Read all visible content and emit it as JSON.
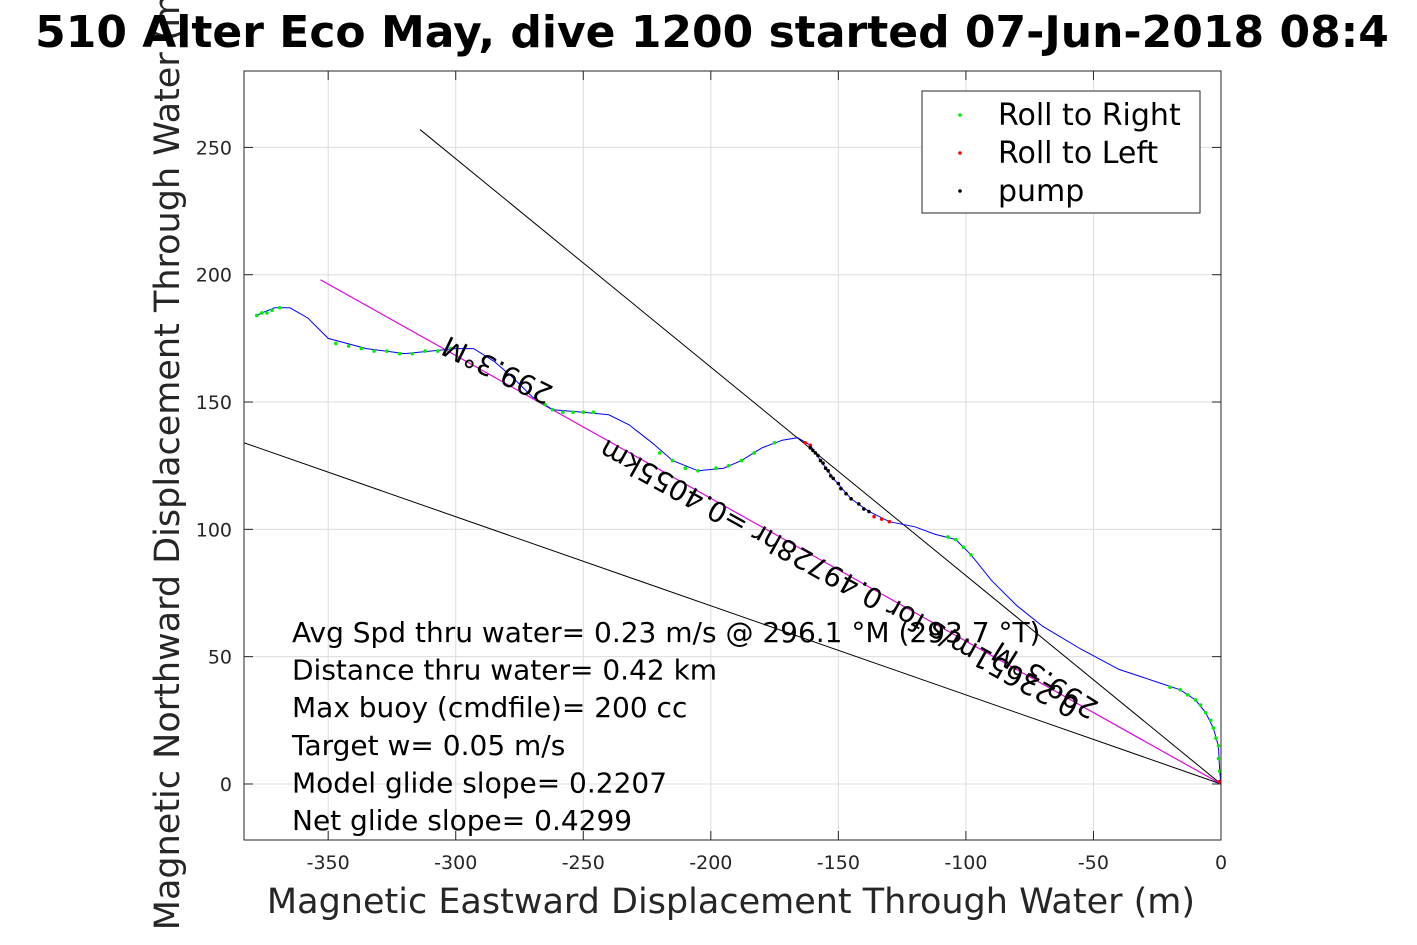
{
  "chart_data": {
    "type": "scatter",
    "title": "510 Alter Eco May, dive 1200 started 07-Jun-2018 08:4",
    "xlabel": "Magnetic Eastward Displacement Through Water (m)",
    "ylabel": "Magnetic Northward Displacement Through Water (m)",
    "xlim": [
      -383,
      0
    ],
    "ylim": [
      -22,
      280
    ],
    "xticks": [
      -350,
      -300,
      -250,
      -200,
      -150,
      -100,
      -50,
      0
    ],
    "yticks": [
      0,
      50,
      100,
      150,
      200,
      250
    ],
    "grid": true,
    "legend_position": "top-right",
    "legend": [
      {
        "label": "Roll to Right",
        "color": "#00ee00"
      },
      {
        "label": "Roll to Left",
        "color": "#ff0000"
      },
      {
        "label": "pump",
        "color": "#000000"
      }
    ],
    "track": {
      "name": "track",
      "color": "#0000ff",
      "points": [
        [
          0,
          0
        ],
        [
          -0.5,
          5
        ],
        [
          -1,
          15
        ],
        [
          -3,
          22
        ],
        [
          -6,
          28
        ],
        [
          -10,
          33
        ],
        [
          -16,
          37
        ],
        [
          -25,
          40
        ],
        [
          -40,
          45
        ],
        [
          -55,
          53
        ],
        [
          -70,
          62
        ],
        [
          -80,
          70
        ],
        [
          -90,
          80
        ],
        [
          -98,
          90
        ],
        [
          -104,
          96
        ],
        [
          -112,
          98
        ],
        [
          -120,
          101
        ],
        [
          -130,
          103
        ],
        [
          -138,
          107
        ],
        [
          -145,
          112
        ],
        [
          -152,
          120
        ],
        [
          -157,
          127
        ],
        [
          -161,
          133
        ],
        [
          -166,
          136
        ],
        [
          -172,
          135
        ],
        [
          -180,
          132
        ],
        [
          -188,
          127
        ],
        [
          -195,
          124
        ],
        [
          -205,
          123
        ],
        [
          -215,
          127
        ],
        [
          -223,
          134
        ],
        [
          -232,
          141
        ],
        [
          -240,
          145
        ],
        [
          -250,
          146
        ],
        [
          -262,
          147
        ],
        [
          -270,
          152
        ],
        [
          -278,
          160
        ],
        [
          -285,
          166
        ],
        [
          -293,
          171
        ],
        [
          -300,
          171
        ],
        [
          -310,
          170
        ],
        [
          -320,
          169
        ],
        [
          -335,
          171
        ],
        [
          -350,
          175
        ],
        [
          -358,
          183
        ],
        [
          -365,
          187
        ],
        [
          -371,
          187
        ],
        [
          -376,
          185
        ],
        [
          -378,
          184
        ]
      ]
    },
    "roll_right_points": [
      [
        -0.5,
        5
      ],
      [
        -1,
        10
      ],
      [
        -1,
        15
      ],
      [
        -2,
        18
      ],
      [
        -3,
        22
      ],
      [
        -4,
        25
      ],
      [
        -6,
        28
      ],
      [
        -8,
        31
      ],
      [
        -10,
        33
      ],
      [
        -13,
        35
      ],
      [
        -16,
        37
      ],
      [
        -20,
        38
      ],
      [
        -98,
        90
      ],
      [
        -101,
        93
      ],
      [
        -104,
        96
      ],
      [
        -107,
        97
      ],
      [
        -175,
        134
      ],
      [
        -183,
        130
      ],
      [
        -188,
        127
      ],
      [
        -193,
        125
      ],
      [
        -198,
        124
      ],
      [
        -205,
        123
      ],
      [
        -210,
        124
      ],
      [
        -215,
        127
      ],
      [
        -220,
        130
      ],
      [
        -246,
        146
      ],
      [
        -250,
        146
      ],
      [
        -254,
        146
      ],
      [
        -258,
        146
      ],
      [
        -262,
        147
      ],
      [
        -265,
        149
      ],
      [
        -302,
        171
      ],
      [
        -307,
        170
      ],
      [
        -312,
        170
      ],
      [
        -317,
        169
      ],
      [
        -322,
        169
      ],
      [
        -327,
        170
      ],
      [
        -332,
        170
      ],
      [
        -337,
        171
      ],
      [
        -342,
        172
      ],
      [
        -347,
        173
      ],
      [
        -369,
        187
      ],
      [
        -372,
        186
      ],
      [
        -374,
        185
      ],
      [
        -376,
        185
      ],
      [
        -378,
        184
      ]
    ],
    "roll_left_points": [
      [
        -0.5,
        1
      ],
      [
        -130,
        103
      ],
      [
        -133,
        104
      ],
      [
        -136,
        105
      ],
      [
        -161,
        133
      ],
      [
        -163,
        134
      ]
    ],
    "pump_points": [
      [
        -152,
        120
      ],
      [
        -153,
        121
      ],
      [
        -154,
        123
      ],
      [
        -155,
        124
      ],
      [
        -156,
        126
      ],
      [
        -157,
        127
      ],
      [
        -158,
        129
      ],
      [
        -159,
        130
      ],
      [
        -160,
        131
      ],
      [
        -161,
        132
      ],
      [
        -145,
        112
      ],
      [
        -147,
        114
      ],
      [
        -149,
        116
      ],
      [
        -150,
        118
      ],
      [
        -140,
        108
      ],
      [
        -142,
        110
      ],
      [
        -138,
        107
      ]
    ],
    "reference_lines": [
      {
        "from": [
          0,
          0
        ],
        "to": [
          -314,
          257
        ],
        "color": "#000000"
      },
      {
        "from": [
          0,
          0
        ],
        "to": [
          -383,
          134
        ],
        "color": "#000000"
      },
      {
        "from": [
          0,
          0
        ],
        "to": [
          -353,
          198
        ],
        "color": "#000000"
      },
      {
        "from": [
          0,
          0
        ],
        "to": [
          -353,
          198
        ],
        "color": "#ff00ff"
      }
    ],
    "line_labels": [
      {
        "text": "299.3°M",
        "at": [
          -282,
          166
        ],
        "angle": 206
      },
      {
        "text": "0.22651m/s for 0.49728hr =0.4055km",
        "at": [
          -148,
          84
        ],
        "angle": 209
      },
      {
        "text": "299.3°M",
        "at": [
          -67,
          44
        ],
        "angle": 212
      }
    ],
    "annotations": [
      "Avg Spd thru water=  0.23 m/s @ 296.1 °M (293.7 °T)",
      "Distance thru water=  0.42 km",
      "Max buoy (cmdfile)= 200 cc",
      "Target w= 0.05 m/s",
      "Model glide slope= 0.2207",
      "Net glide slope= 0.4299"
    ]
  }
}
